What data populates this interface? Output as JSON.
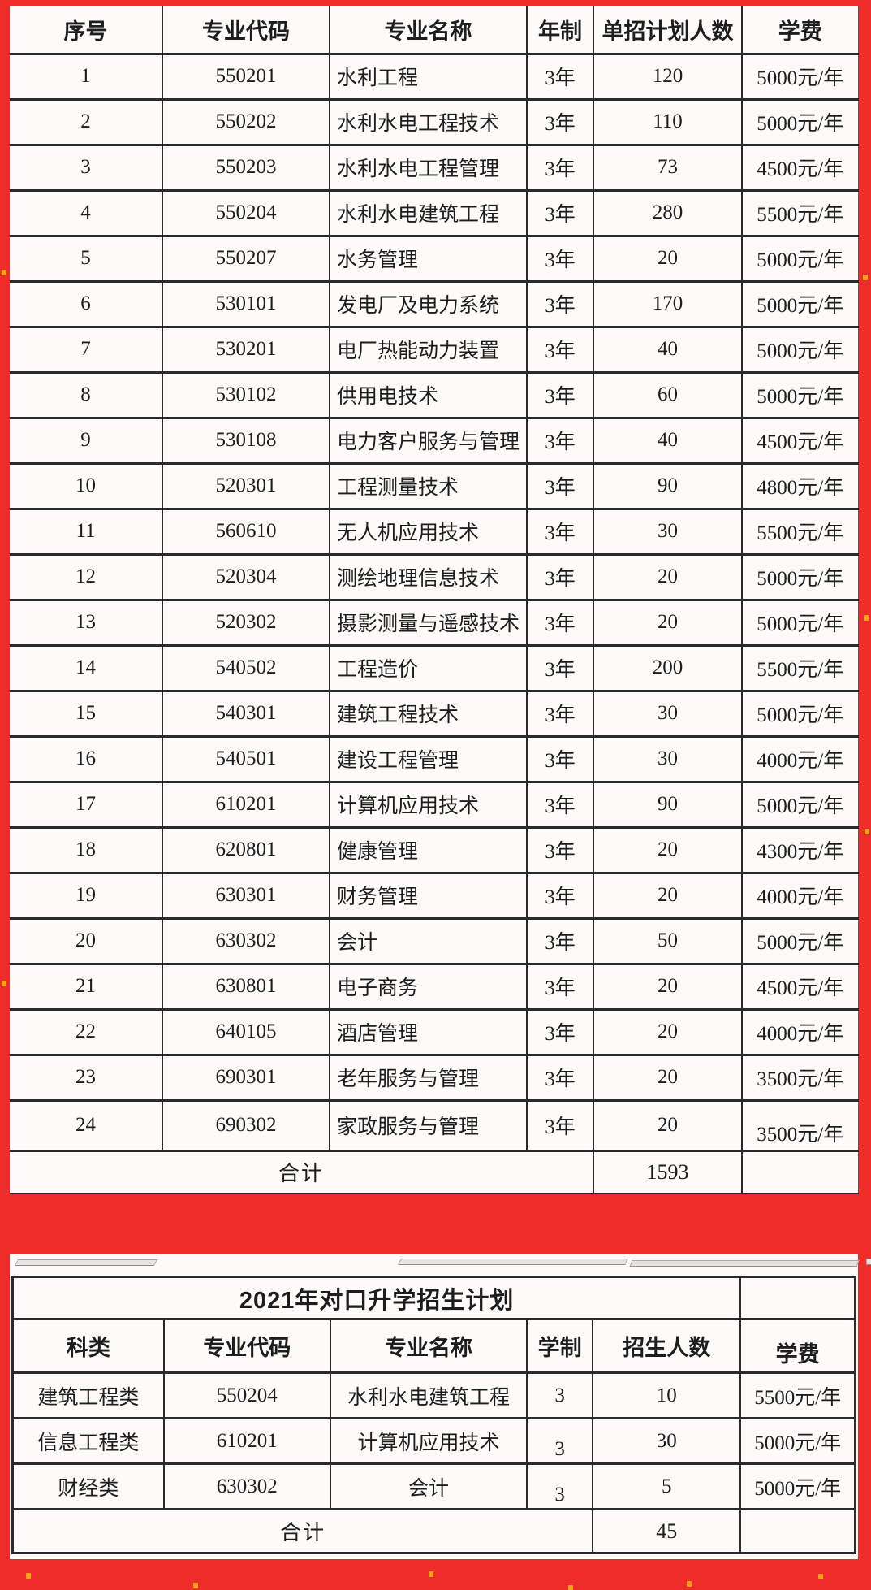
{
  "colors": {
    "frame_red": "#ee2d2a",
    "grid_black": "#2a2a2a",
    "paper": "#fcfbf9",
    "speck_orange": "#f7a21b"
  },
  "table1": {
    "col_keys": [
      "index",
      "major_code",
      "major_name",
      "duration",
      "plan_count",
      "tuition"
    ],
    "headers": [
      "序号",
      "专业代码",
      "专业名称",
      "年制",
      "单招计划人数",
      "学费"
    ],
    "rows": [
      [
        "1",
        "550201",
        "水利工程",
        "3年",
        "120",
        "5000元/年"
      ],
      [
        "2",
        "550202",
        "水利水电工程技术",
        "3年",
        "110",
        "5000元/年"
      ],
      [
        "3",
        "550203",
        "水利水电工程管理",
        "3年",
        "73",
        "4500元/年"
      ],
      [
        "4",
        "550204",
        "水利水电建筑工程",
        "3年",
        "280",
        "5500元/年"
      ],
      [
        "5",
        "550207",
        "水务管理",
        "3年",
        "20",
        "5000元/年"
      ],
      [
        "6",
        "530101",
        "发电厂及电力系统",
        "3年",
        "170",
        "5000元/年"
      ],
      [
        "7",
        "530201",
        "电厂热能动力装置",
        "3年",
        "40",
        "5000元/年"
      ],
      [
        "8",
        "530102",
        "供用电技术",
        "3年",
        "60",
        "5000元/年"
      ],
      [
        "9",
        "530108",
        "电力客户服务与管理",
        "3年",
        "40",
        "4500元/年"
      ],
      [
        "10",
        "520301",
        "工程测量技术",
        "3年",
        "90",
        "4800元/年"
      ],
      [
        "11",
        "560610",
        "无人机应用技术",
        "3年",
        "30",
        "5500元/年"
      ],
      [
        "12",
        "520304",
        "测绘地理信息技术",
        "3年",
        "20",
        "5000元/年"
      ],
      [
        "13",
        "520302",
        "摄影测量与遥感技术",
        "3年",
        "20",
        "5000元/年"
      ],
      [
        "14",
        "540502",
        "工程造价",
        "3年",
        "200",
        "5500元/年"
      ],
      [
        "15",
        "540301",
        "建筑工程技术",
        "3年",
        "30",
        "5000元/年"
      ],
      [
        "16",
        "540501",
        "建设工程管理",
        "3年",
        "30",
        "4000元/年"
      ],
      [
        "17",
        "610201",
        "计算机应用技术",
        "3年",
        "90",
        "5000元/年"
      ],
      [
        "18",
        "620801",
        "健康管理",
        "3年",
        "20",
        "4300元/年"
      ],
      [
        "19",
        "630301",
        "财务管理",
        "3年",
        "20",
        "4000元/年"
      ],
      [
        "20",
        "630302",
        "会计",
        "3年",
        "50",
        "5000元/年"
      ],
      [
        "21",
        "630801",
        "电子商务",
        "3年",
        "20",
        "4500元/年"
      ],
      [
        "22",
        "640105",
        "酒店管理",
        "3年",
        "20",
        "4000元/年"
      ],
      [
        "23",
        "690301",
        "老年服务与管理",
        "3年",
        "20",
        "3500元/年"
      ],
      [
        "24",
        "690302",
        "家政服务与管理",
        "3年",
        "20",
        "3500元/年"
      ]
    ],
    "total_label": "合计",
    "total_value": "1593"
  },
  "table2": {
    "title": "2021年对口升学招生计划",
    "col_keys": [
      "category",
      "major_code",
      "major_name",
      "duration",
      "enroll_count",
      "tuition"
    ],
    "headers": [
      "科类",
      "专业代码",
      "专业名称",
      "学制",
      "招生人数",
      "学费"
    ],
    "rows": [
      [
        "建筑工程类",
        "550204",
        "水利水电建筑工程",
        "3",
        "10",
        "5500元/年"
      ],
      [
        "信息工程类",
        "610201",
        "计算机应用技术",
        "3",
        "30",
        "5000元/年"
      ],
      [
        "财经类",
        "630302",
        "会计",
        "3",
        "5",
        "5000元/年"
      ]
    ],
    "total_label": "合计",
    "total_value": "45"
  }
}
